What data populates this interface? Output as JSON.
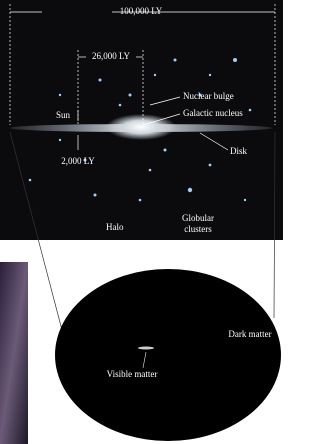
{
  "diagram": {
    "scale_labels": {
      "galaxy_width": "100,000 LY",
      "sun_distance": "26,000 LY",
      "disk_thickness": "2,000 LY"
    },
    "labels": {
      "nuclear_bulge": "Nuclear bulge",
      "galactic_nucleus": "Galactic nucleus",
      "sun": "Sun",
      "disk": "Disk",
      "halo": "Halo",
      "globular_clusters": [
        "Globular",
        "clusters"
      ]
    },
    "inset_labels": {
      "dark_matter": "Dark matter",
      "visible_matter": "Visible matter"
    }
  }
}
